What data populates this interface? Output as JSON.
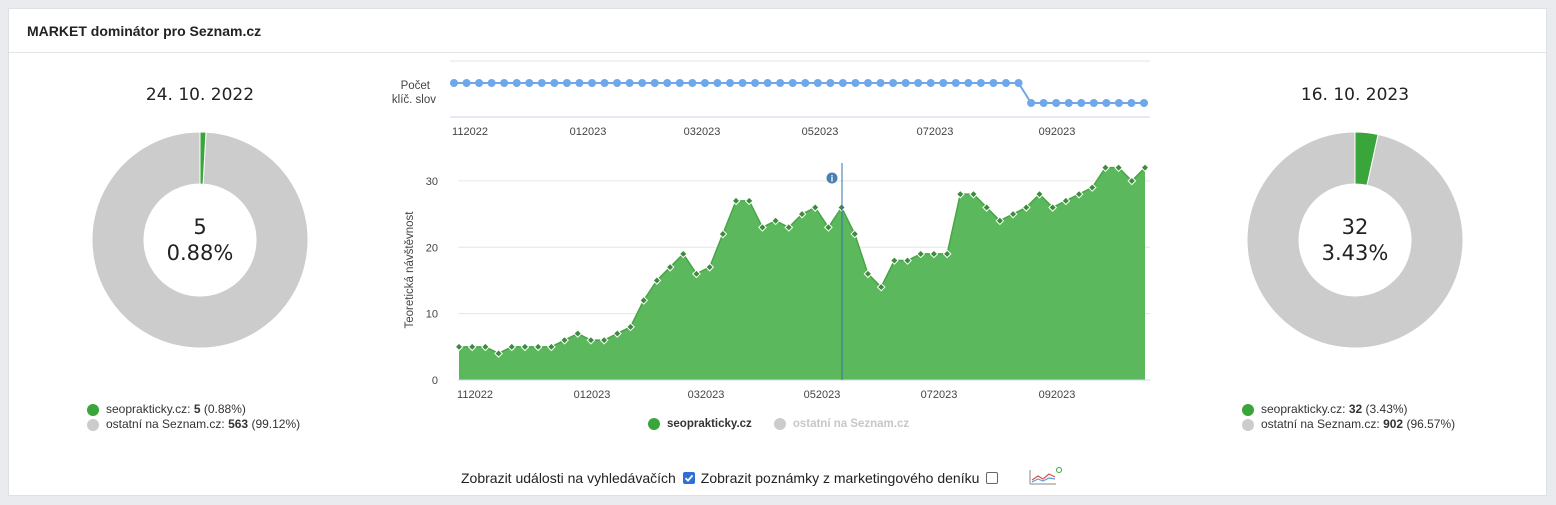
{
  "header": {
    "title": "MARKET dominátor pro Seznam.cz"
  },
  "colors": {
    "green": "#3aa53a",
    "gray": "#cccccc",
    "line": "#6ea8ea",
    "area": "#5cb85c"
  },
  "left": {
    "date": "24. 10. 2022",
    "center_count": "5",
    "center_pct": "0.88%",
    "share": 0.0088,
    "legend": [
      {
        "label": "seoprakticky.cz:",
        "value": "5",
        "pct": "(0.88%)"
      },
      {
        "label": "ostatní na Seznam.cz:",
        "value": "563",
        "pct": "(99.12%)"
      }
    ]
  },
  "right": {
    "date": "16. 10. 2023",
    "center_count": "32",
    "center_pct": "3.43%",
    "share": 0.0343,
    "legend": [
      {
        "label": "seoprakticky.cz:",
        "value": "32",
        "pct": "(3.43%)"
      },
      {
        "label": "ostatní na Seznam.cz:",
        "value": "902",
        "pct": "(96.57%)"
      }
    ]
  },
  "chart_data": [
    {
      "type": "line",
      "ylabel": "Počet klíč. slov",
      "x_ticks": [
        "112022",
        "012023",
        "032023",
        "052023",
        "072023",
        "092023"
      ],
      "series": [
        {
          "values": [
            1,
            1,
            1,
            1,
            1,
            1,
            1,
            1,
            1,
            1,
            1,
            1,
            1,
            1,
            1,
            1,
            1,
            1,
            1,
            1,
            1,
            1,
            1,
            1,
            1,
            1,
            1,
            1,
            1,
            1,
            1,
            1,
            1,
            1,
            1,
            1,
            1,
            1,
            1,
            1,
            1,
            1,
            1,
            1,
            1,
            1,
            0,
            0,
            0,
            0,
            0,
            0,
            0,
            0,
            0,
            0
          ]
        }
      ]
    },
    {
      "type": "area",
      "ylabel": "Teoretická návštěvnost",
      "ylim": [
        0,
        33
      ],
      "y_ticks": [
        "0",
        "10",
        "20",
        "30"
      ],
      "x_ticks": [
        "112022",
        "012023",
        "032023",
        "052023",
        "072023",
        "092023"
      ],
      "marker_date": "052023",
      "series": [
        {
          "name": "seoprakticky.cz",
          "values": [
            5,
            5,
            5,
            4,
            5,
            5,
            5,
            5,
            6,
            7,
            6,
            6,
            7,
            8,
            12,
            15,
            17,
            19,
            16,
            17,
            22,
            27,
            27,
            23,
            24,
            23,
            25,
            26,
            23,
            26,
            22,
            16,
            14,
            18,
            18,
            19,
            19,
            19,
            28,
            28,
            26,
            24,
            25,
            26,
            28,
            26,
            27,
            28,
            29,
            32,
            32,
            30,
            32
          ]
        },
        {
          "name": "ostatní na Seznam.cz",
          "values": []
        }
      ]
    }
  ],
  "chart_legend": {
    "series1": "seoprakticky.cz",
    "series2": "ostatní na Seznam.cz"
  },
  "footer": {
    "events_label": "Zobrazit události na vyhledávačích",
    "events_checked": true,
    "notes_label": "Zobrazit poznámky z marketingového deníku",
    "notes_checked": false
  }
}
